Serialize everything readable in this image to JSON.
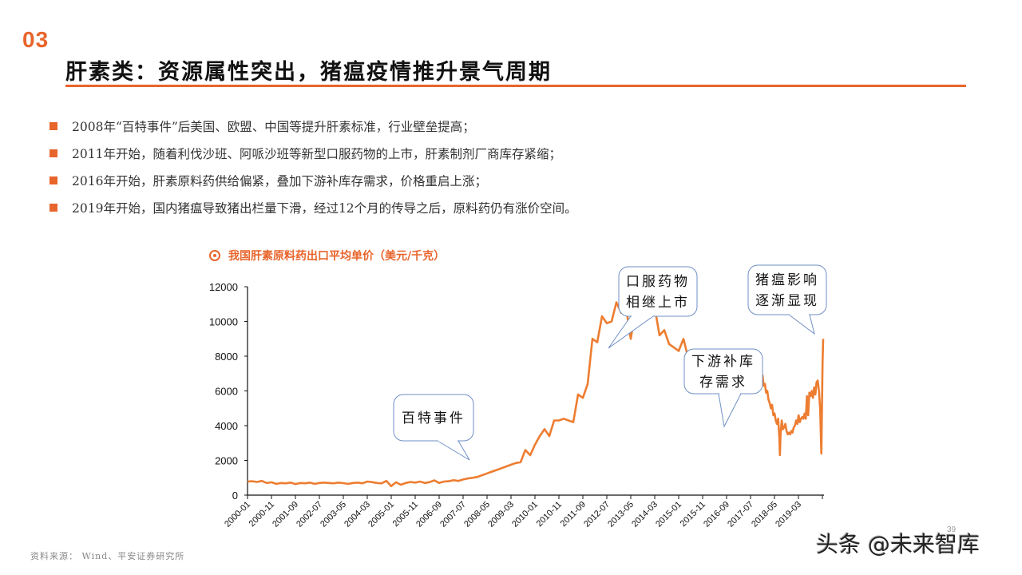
{
  "header": {
    "section_number": "03",
    "title": "肝素类：资源属性突出，猪瘟疫情推升景气周期",
    "accent_color": "#E8652C"
  },
  "bullets": [
    "2008年“百特事件”后美国、欧盟、中国等提升肝素标准，行业壁垒提高；",
    "2011年开始，随着利伐沙班、阿哌沙班等新型口服药物的上市，肝素制剂厂商库存紧缩；",
    "2016年开始，肝素原料药供给偏紧，叠加下游补库存需求，价格重启上涨；",
    "2019年开始，国内猪瘟导致猪出栏量下滑，经过12个月的传导之后，原料药仍有涨价空间。"
  ],
  "chart_data": {
    "type": "line",
    "title": "我国肝素原料药出口平均单价（美元/千克）",
    "xlabel": "",
    "ylabel": "",
    "ylim": [
      0,
      12000
    ],
    "yticks": [
      0,
      2000,
      4000,
      6000,
      8000,
      10000,
      12000
    ],
    "grid": false,
    "legend": "none",
    "line_color": "#ED7D31",
    "x_tick_labels": [
      "2000-01",
      "2000-11",
      "2001-09",
      "2002-07",
      "2003-05",
      "2004-03",
      "2005-01",
      "2005-11",
      "2006-09",
      "2007-07",
      "2008-05",
      "2009-03",
      "2010-01",
      "2010-11",
      "2011-09",
      "2012-07",
      "2013-05",
      "2014-03",
      "2015-01",
      "2015-11",
      "2016-09",
      "2017-07",
      "2018-05",
      "2019-03"
    ],
    "x_tick_step_months": 10,
    "series": [
      {
        "name": "肝素原料药出口平均单价",
        "points_month_index_value": [
          [
            0,
            780
          ],
          [
            2,
            800
          ],
          [
            4,
            760
          ],
          [
            6,
            820
          ],
          [
            8,
            700
          ],
          [
            10,
            740
          ],
          [
            12,
            650
          ],
          [
            14,
            700
          ],
          [
            16,
            680
          ],
          [
            18,
            720
          ],
          [
            20,
            640
          ],
          [
            22,
            700
          ],
          [
            24,
            680
          ],
          [
            26,
            720
          ],
          [
            28,
            650
          ],
          [
            30,
            700
          ],
          [
            32,
            720
          ],
          [
            34,
            700
          ],
          [
            36,
            680
          ],
          [
            38,
            720
          ],
          [
            40,
            690
          ],
          [
            42,
            650
          ],
          [
            44,
            700
          ],
          [
            46,
            720
          ],
          [
            48,
            680
          ],
          [
            50,
            780
          ],
          [
            52,
            750
          ],
          [
            54,
            700
          ],
          [
            56,
            680
          ],
          [
            58,
            820
          ],
          [
            60,
            520
          ],
          [
            62,
            740
          ],
          [
            64,
            600
          ],
          [
            66,
            700
          ],
          [
            68,
            760
          ],
          [
            70,
            720
          ],
          [
            72,
            780
          ],
          [
            74,
            700
          ],
          [
            76,
            750
          ],
          [
            78,
            850
          ],
          [
            80,
            700
          ],
          [
            82,
            780
          ],
          [
            84,
            800
          ],
          [
            86,
            860
          ],
          [
            88,
            820
          ],
          [
            90,
            900
          ],
          [
            92,
            960
          ],
          [
            94,
            1000
          ],
          [
            96,
            1050
          ],
          [
            98,
            1150
          ],
          [
            100,
            1250
          ],
          [
            102,
            1350
          ],
          [
            104,
            1450
          ],
          [
            106,
            1550
          ],
          [
            108,
            1650
          ],
          [
            110,
            1750
          ],
          [
            112,
            1850
          ],
          [
            114,
            1900
          ],
          [
            116,
            2600
          ],
          [
            118,
            2300
          ],
          [
            120,
            2900
          ],
          [
            122,
            3400
          ],
          [
            124,
            3800
          ],
          [
            126,
            3400
          ],
          [
            128,
            4300
          ],
          [
            130,
            4300
          ],
          [
            132,
            4400
          ],
          [
            134,
            4300
          ],
          [
            136,
            4200
          ],
          [
            138,
            5800
          ],
          [
            140,
            5600
          ],
          [
            142,
            6400
          ],
          [
            144,
            9000
          ],
          [
            146,
            8800
          ],
          [
            148,
            10300
          ],
          [
            150,
            9900
          ],
          [
            152,
            10000
          ],
          [
            154,
            11100
          ],
          [
            156,
            10500
          ],
          [
            158,
            10800
          ],
          [
            160,
            9000
          ],
          [
            162,
            10700
          ],
          [
            164,
            11000
          ],
          [
            166,
            10300
          ],
          [
            168,
            11100
          ],
          [
            170,
            10800
          ],
          [
            172,
            9200
          ],
          [
            174,
            9500
          ],
          [
            176,
            8700
          ],
          [
            178,
            8500
          ],
          [
            180,
            8300
          ],
          [
            182,
            9000
          ],
          [
            184,
            7900
          ],
          [
            186,
            8000
          ],
          [
            188,
            7600
          ],
          [
            190,
            7500
          ],
          [
            192,
            7000
          ],
          [
            194,
            6900
          ],
          [
            196,
            7400
          ],
          [
            198,
            6900
          ],
          [
            200,
            6500
          ],
          [
            202,
            7100
          ],
          [
            204,
            6700
          ],
          [
            206,
            7000
          ],
          [
            208,
            7200
          ],
          [
            210,
            6800
          ],
          [
            212,
            6900
          ],
          [
            214,
            6500
          ]
        ]
      }
    ],
    "annotations": [
      {
        "text_lines": [
          "百特事件"
        ],
        "target_label": "2007-11"
      },
      {
        "text_lines": [
          "口服药物",
          "相继上市"
        ],
        "target_label": "2012-07"
      },
      {
        "text_lines": [
          "下游补库",
          "存需求"
        ],
        "target_label": "2016-04"
      },
      {
        "text_lines": [
          "猪瘟影响",
          "逐渐显现"
        ],
        "target_label": "2020-01"
      }
    ]
  },
  "footer": {
    "source": "资料来源： Wind、平安证券研究所",
    "page_number": "39",
    "watermark": "头条 @未来智库"
  }
}
